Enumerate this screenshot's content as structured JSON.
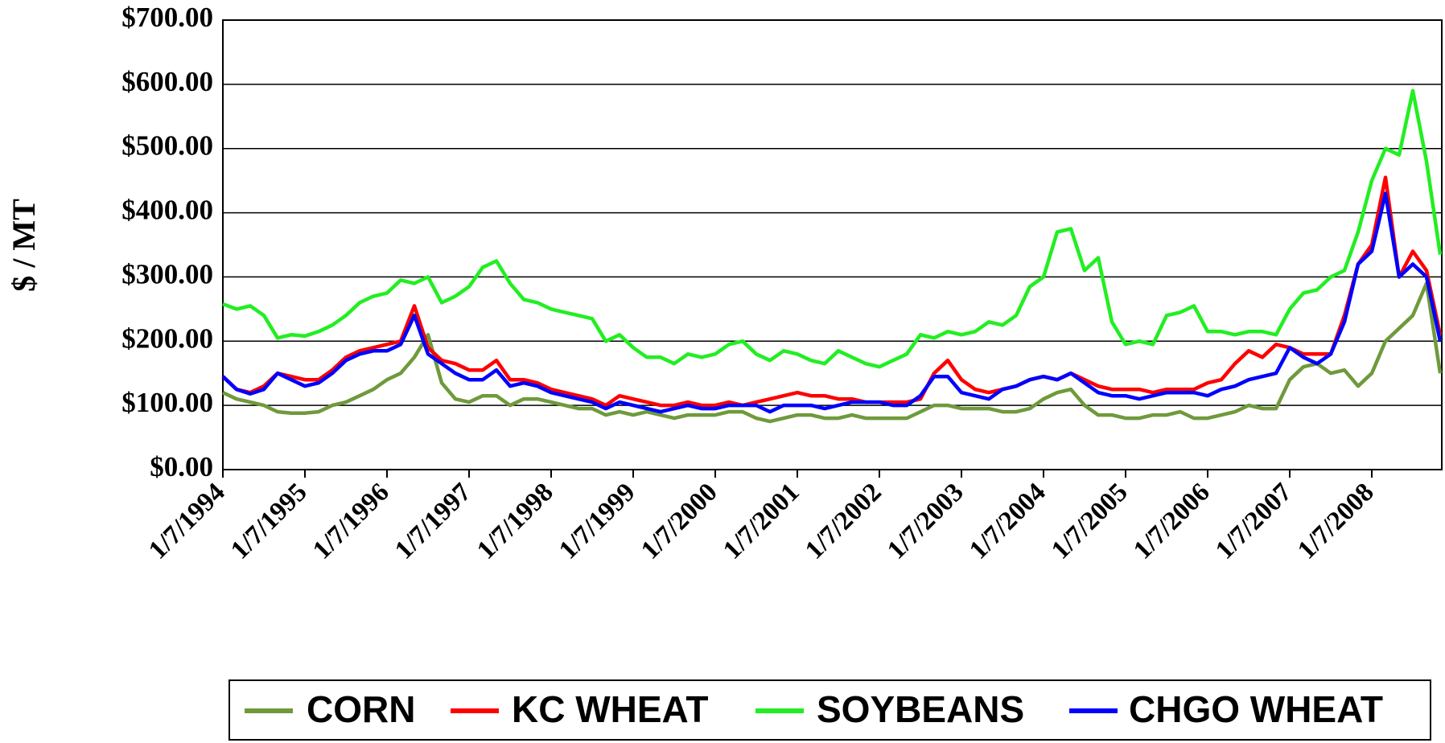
{
  "chart_data": {
    "type": "line",
    "ylabel": "$ / MT",
    "categories": [
      "1/7/1994",
      null,
      null,
      null,
      null,
      null,
      "1/7/1995",
      null,
      null,
      null,
      null,
      null,
      "1/7/1996",
      null,
      null,
      null,
      null,
      null,
      "1/7/1997",
      null,
      null,
      null,
      null,
      null,
      "1/7/1998",
      null,
      null,
      null,
      null,
      null,
      "1/7/1999",
      null,
      null,
      null,
      null,
      null,
      "1/7/2000",
      null,
      null,
      null,
      null,
      null,
      "1/7/2001",
      null,
      null,
      null,
      null,
      null,
      "1/7/2002",
      null,
      null,
      null,
      null,
      null,
      "1/7/2003",
      null,
      null,
      null,
      null,
      null,
      "1/7/2004",
      null,
      null,
      null,
      null,
      null,
      "1/7/2005",
      null,
      null,
      null,
      null,
      null,
      "1/7/2006",
      null,
      null,
      null,
      null,
      null,
      "1/7/2007",
      null,
      null,
      null,
      null,
      null,
      "1/7/2008",
      null,
      null,
      null,
      null,
      null
    ],
    "series": [
      {
        "name": "CORN",
        "color": "#6f9a3c",
        "values": [
          120,
          110,
          105,
          100,
          90,
          88,
          88,
          90,
          100,
          105,
          115,
          125,
          140,
          150,
          175,
          210,
          135,
          110,
          105,
          115,
          115,
          100,
          110,
          110,
          105,
          100,
          95,
          95,
          85,
          90,
          85,
          90,
          85,
          80,
          85,
          85,
          85,
          90,
          90,
          80,
          75,
          80,
          85,
          85,
          80,
          80,
          85,
          80,
          80,
          80,
          80,
          90,
          100,
          100,
          95,
          95,
          95,
          90,
          90,
          95,
          110,
          120,
          125,
          100,
          85,
          85,
          80,
          80,
          85,
          85,
          90,
          80,
          80,
          85,
          90,
          100,
          95,
          95,
          140,
          160,
          165,
          150,
          155,
          130,
          150,
          200,
          220,
          240,
          290,
          150
        ]
      },
      {
        "name": "KC WHEAT",
        "color": "#ff0000",
        "values": [
          145,
          125,
          120,
          130,
          150,
          145,
          140,
          140,
          155,
          175,
          185,
          190,
          195,
          200,
          255,
          190,
          170,
          165,
          155,
          155,
          170,
          140,
          140,
          135,
          125,
          120,
          115,
          110,
          100,
          115,
          110,
          105,
          100,
          100,
          105,
          100,
          100,
          105,
          100,
          105,
          110,
          115,
          120,
          115,
          115,
          110,
          110,
          105,
          105,
          105,
          105,
          110,
          150,
          170,
          140,
          125,
          120,
          125,
          130,
          140,
          145,
          140,
          150,
          140,
          130,
          125,
          125,
          125,
          120,
          125,
          125,
          125,
          135,
          140,
          165,
          185,
          175,
          195,
          190,
          180,
          180,
          180,
          240,
          320,
          350,
          455,
          300,
          340,
          310,
          210
        ]
      },
      {
        "name": "SOYBEANS",
        "color": "#22ee22",
        "values": [
          258,
          250,
          255,
          240,
          205,
          210,
          208,
          215,
          225,
          240,
          260,
          270,
          275,
          295,
          290,
          300,
          260,
          270,
          285,
          315,
          325,
          290,
          265,
          260,
          250,
          245,
          240,
          235,
          200,
          210,
          190,
          175,
          175,
          165,
          180,
          175,
          180,
          195,
          200,
          180,
          170,
          185,
          180,
          170,
          165,
          185,
          175,
          165,
          160,
          170,
          180,
          210,
          205,
          215,
          210,
          215,
          230,
          225,
          240,
          285,
          300,
          370,
          375,
          310,
          330,
          230,
          195,
          200,
          195,
          240,
          245,
          255,
          215,
          215,
          210,
          215,
          215,
          210,
          250,
          275,
          280,
          300,
          310,
          370,
          450,
          500,
          490,
          590,
          480,
          335
        ]
      },
      {
        "name": "CHGO WHEAT",
        "color": "#0000ff",
        "values": [
          145,
          125,
          118,
          125,
          150,
          140,
          130,
          135,
          150,
          170,
          180,
          185,
          185,
          195,
          240,
          180,
          165,
          150,
          140,
          140,
          155,
          130,
          135,
          130,
          120,
          115,
          110,
          105,
          95,
          105,
          100,
          95,
          90,
          95,
          100,
          95,
          95,
          100,
          100,
          100,
          90,
          100,
          100,
          100,
          95,
          100,
          105,
          105,
          105,
          100,
          100,
          115,
          145,
          145,
          120,
          115,
          110,
          125,
          130,
          140,
          145,
          140,
          150,
          135,
          120,
          115,
          115,
          110,
          115,
          120,
          120,
          120,
          115,
          125,
          130,
          140,
          145,
          150,
          190,
          175,
          165,
          180,
          230,
          320,
          340,
          430,
          300,
          320,
          300,
          200
        ]
      }
    ],
    "ylim": [
      0,
      700
    ],
    "yticks": [
      {
        "value": 0,
        "label": "$0.00"
      },
      {
        "value": 100,
        "label": "$100.00"
      },
      {
        "value": 200,
        "label": "$200.00"
      },
      {
        "value": 300,
        "label": "$300.00"
      },
      {
        "value": 400,
        "label": "$400.00"
      },
      {
        "value": 500,
        "label": "$500.00"
      },
      {
        "value": 600,
        "label": "$600.00"
      },
      {
        "value": 700,
        "label": "$700.00"
      }
    ],
    "grid": true,
    "legend": "bottom"
  }
}
